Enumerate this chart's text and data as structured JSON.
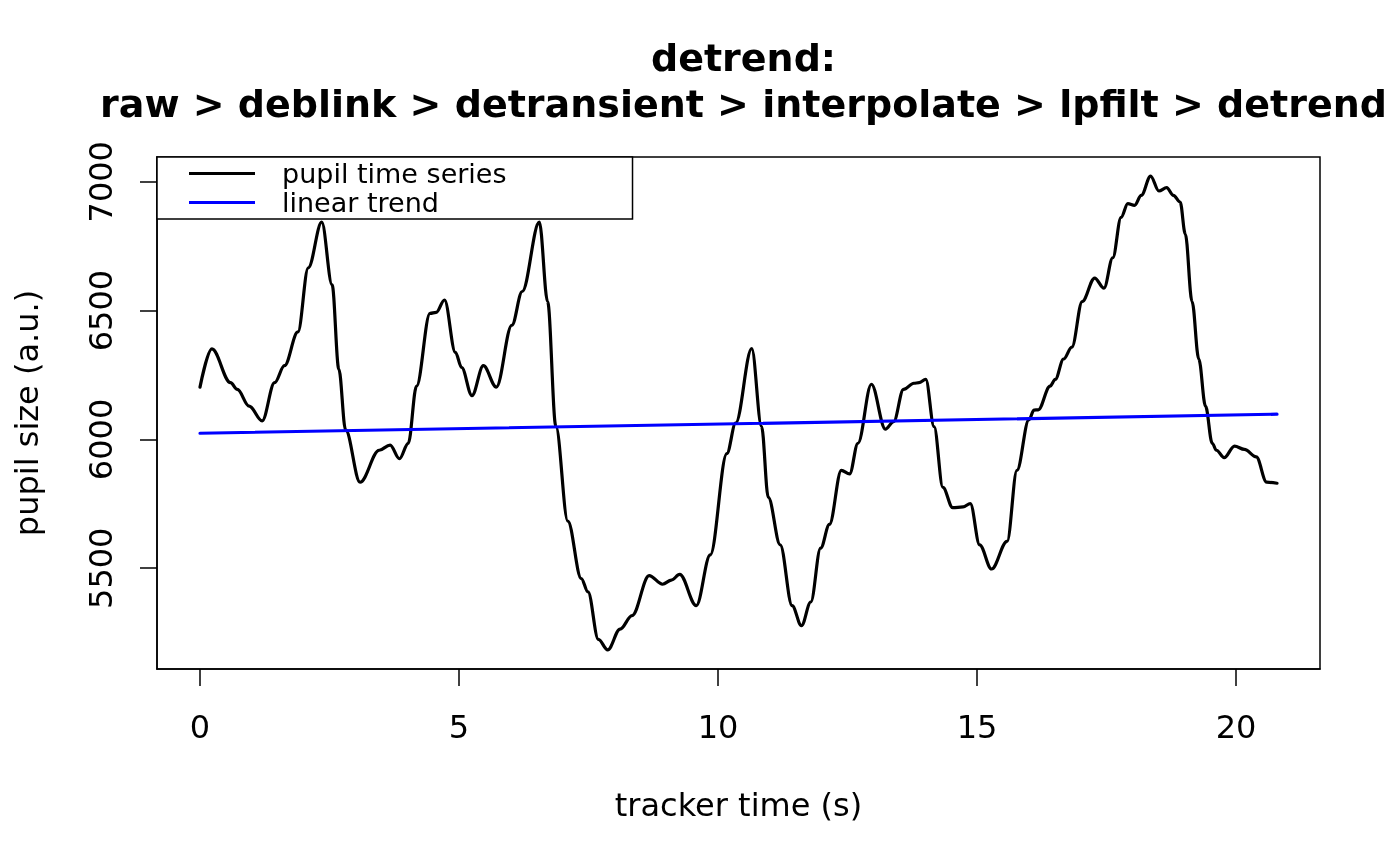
{
  "chart_data": {
    "type": "line",
    "title": "detrend:\nraw > deblink > detransient > interpolate > lpfilt > detrend",
    "xlabel": "tracker time (s)",
    "ylabel": "pupil size (a.u.)",
    "xlim": [
      -0.83,
      21.62
    ],
    "ylim": [
      5109,
      7096
    ],
    "xticks": [
      0,
      5,
      10,
      15,
      20
    ],
    "yticks": [
      5500,
      6000,
      6500,
      7000
    ],
    "grid": false,
    "legend": "top left",
    "marker": "none",
    "line_style": "solid",
    "series": [
      {
        "name": "pupil time series",
        "color": "#000000",
        "x": [
          0,
          0.23,
          0.59,
          0.72,
          0.95,
          1.2,
          1.44,
          1.63,
          1.89,
          2.09,
          2.35,
          2.55,
          2.68,
          2.81,
          3.09,
          3.46,
          3.67,
          3.85,
          4.02,
          4.18,
          4.44,
          4.56,
          4.72,
          4.93,
          5.05,
          5.25,
          5.47,
          5.72,
          6.02,
          6.22,
          6.55,
          6.71,
          6.87,
          7.1,
          7.36,
          7.49,
          7.69,
          7.87,
          8.11,
          8.34,
          8.67,
          8.93,
          9.1,
          9.26,
          9.58,
          9.85,
          10.17,
          10.34,
          10.65,
          10.84,
          10.97,
          11.2,
          11.43,
          11.61,
          11.79,
          11.98,
          12.15,
          12.38,
          12.54,
          12.7,
          12.96,
          13.23,
          13.39,
          13.58,
          13.78,
          13.88,
          14.01,
          14.17,
          14.34,
          14.53,
          14.73,
          14.87,
          15.05,
          15.28,
          15.58,
          15.77,
          16,
          16.1,
          16.18,
          16.41,
          16.51,
          16.67,
          16.83,
          17.03,
          17.27,
          17.45,
          17.62,
          17.78,
          17.91,
          18.04,
          18.17,
          18.35,
          18.51,
          18.66,
          18.79,
          18.92,
          19.02,
          19.15,
          19.28,
          19.41,
          19.54,
          19.62,
          19.77,
          19.97,
          20.16,
          20.39,
          20.59,
          20.79
        ],
        "values": [
          6203,
          6351,
          6220,
          6194,
          6129,
          6072,
          6220,
          6286,
          6417,
          6666,
          6843,
          6600,
          6273,
          6037,
          5834,
          5958,
          5978,
          5925,
          5985,
          6207,
          6489,
          6493,
          6541,
          6338,
          6279,
          6170,
          6286,
          6203,
          6443,
          6574,
          6843,
          6535,
          6050,
          5683,
          5460,
          5408,
          5224,
          5183,
          5264,
          5316,
          5471,
          5438,
          5454,
          5476,
          5355,
          5552,
          5945,
          6063,
          6352,
          6050,
          5775,
          5591,
          5355,
          5277,
          5369,
          5578,
          5670,
          5880,
          5866,
          5985,
          6214,
          6040,
          6069,
          6194,
          6218,
          6220,
          6233,
          6050,
          5814,
          5735,
          5738,
          5751,
          5591,
          5497,
          5604,
          5880,
          6076,
          6114,
          6115,
          6207,
          6233,
          6312,
          6358,
          6535,
          6626,
          6587,
          6705,
          6862,
          6915,
          6908,
          6947,
          7022,
          6964,
          6977,
          6947,
          6921,
          6797,
          6535,
          6312,
          6129,
          5985,
          5958,
          5929,
          5974,
          5961,
          5932,
          5834,
          5830
        ]
      },
      {
        "name": "linear trend",
        "color": "#0000ff",
        "x": [
          0,
          20.79
        ],
        "values": [
          6024,
          6098
        ]
      }
    ]
  }
}
